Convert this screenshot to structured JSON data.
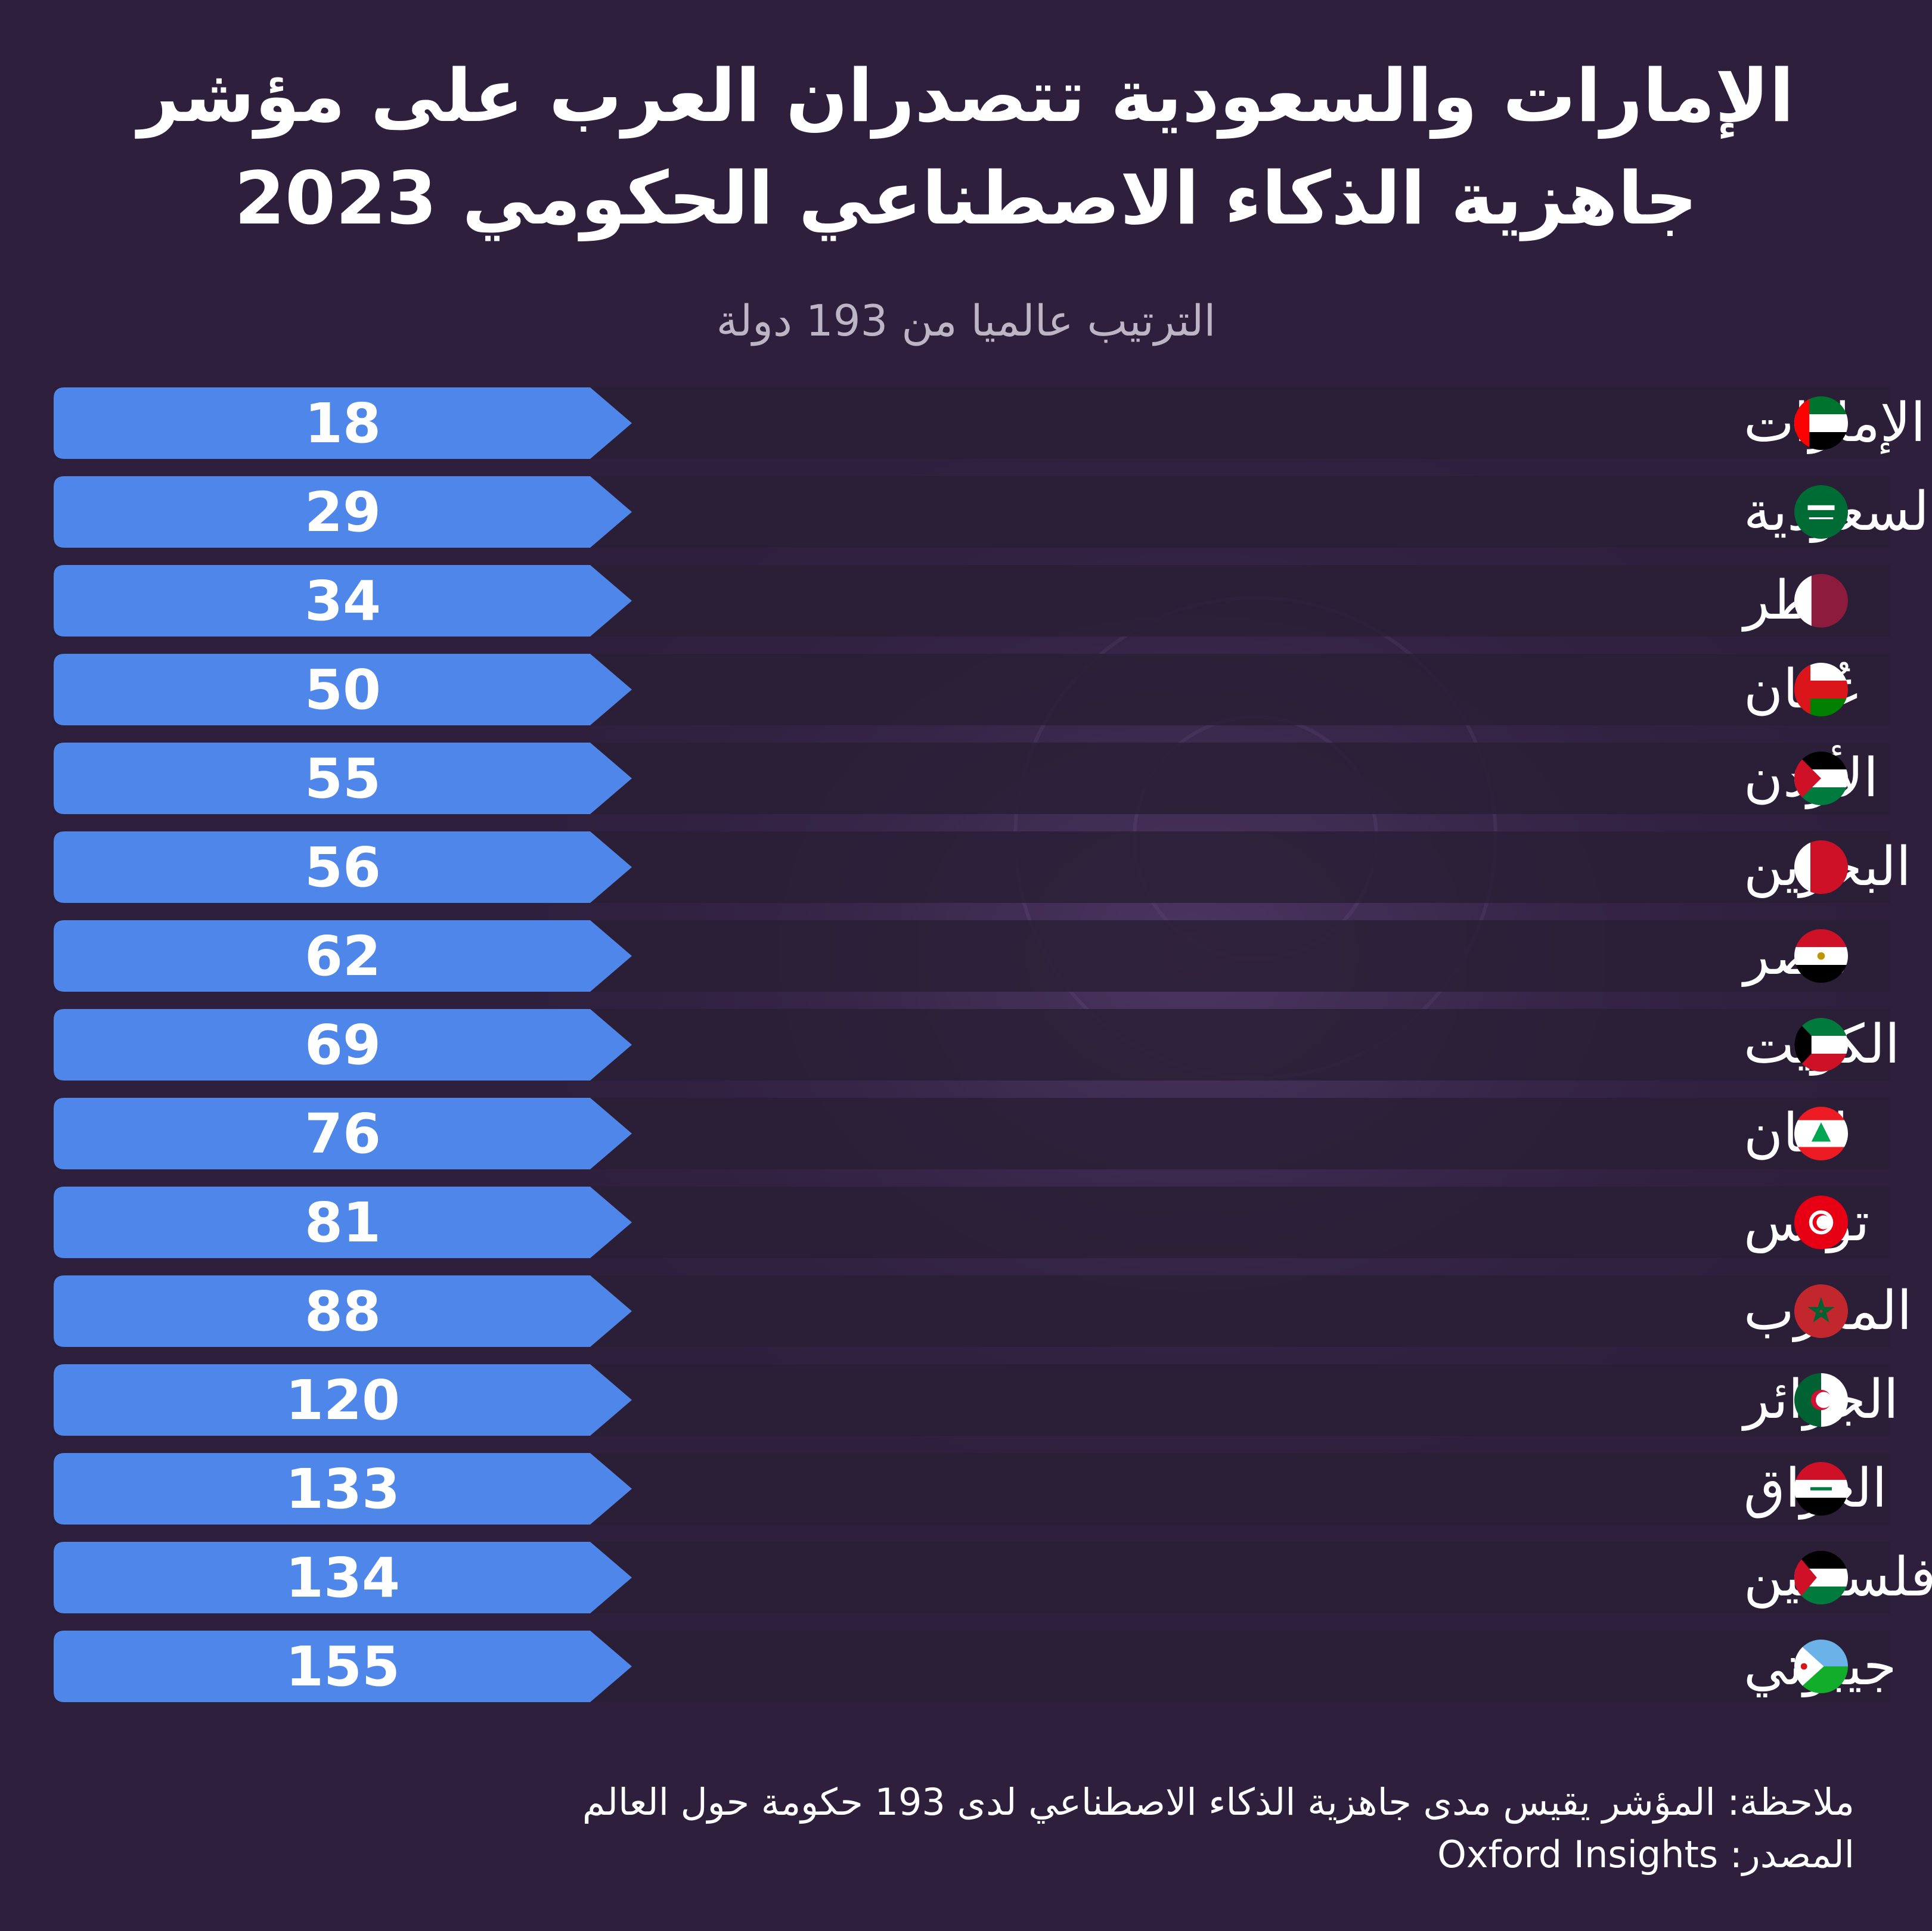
{
  "title": "الإمارات والسعودية تتصدران العرب على مؤشر جاهزية الذكاء الاصطناعي الحكومي 2023",
  "subtitle": "الترتيب عالميا من 193 دولة",
  "note": "ملاحظة: المؤشر يقيس مدى جاهزية الذكاء الاصطناعي لدى 193 حكومة حول العالم",
  "source": "المصدر: Oxford Insights",
  "colors": {
    "background": "#2e1f3d",
    "bar": "#4f86ea",
    "row_band": "#2a1f36",
    "text": "#ffffff",
    "subtitle": "#bdb5c6"
  },
  "chart_data": {
    "type": "bar",
    "orientation": "horizontal",
    "categories": [
      "الإمارات",
      "السعودية",
      "قطر",
      "عُمان",
      "الأردن",
      "البحرين",
      "مصر",
      "الكويت",
      "لبنان",
      "تونس",
      "المغرب",
      "الجزائر",
      "العراق",
      "فلسطين",
      "جيبوتي"
    ],
    "flags": [
      "uae-flag-icon",
      "saudi-flag-icon",
      "qatar-flag-icon",
      "oman-flag-icon",
      "jordan-flag-icon",
      "bahrain-flag-icon",
      "egypt-flag-icon",
      "kuwait-flag-icon",
      "lebanon-flag-icon",
      "tunisia-flag-icon",
      "morocco-flag-icon",
      "algeria-flag-icon",
      "iraq-flag-icon",
      "palestine-flag-icon",
      "djibouti-flag-icon"
    ],
    "values": [
      18,
      29,
      34,
      50,
      55,
      56,
      62,
      69,
      76,
      81,
      88,
      120,
      133,
      134,
      155
    ],
    "value_label": "الترتيب عالميا من 193 دولة",
    "total": 193
  }
}
